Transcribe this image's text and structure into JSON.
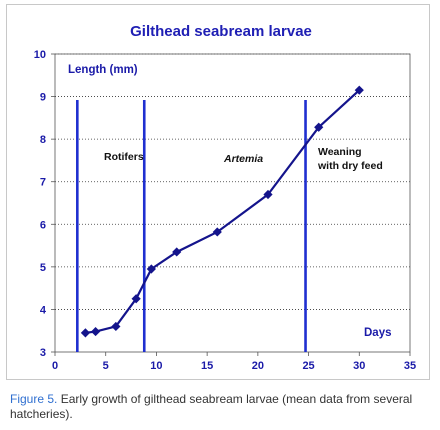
{
  "chart_data": {
    "type": "line",
    "title": "Gilthead seabream larvae",
    "ylabel": "Length (mm)",
    "xlabel": "Days",
    "xlim": [
      0,
      35
    ],
    "ylim": [
      3,
      10
    ],
    "x_ticks": [
      0,
      5,
      10,
      15,
      20,
      25,
      30,
      35
    ],
    "y_ticks": [
      3,
      4,
      5,
      6,
      7,
      8,
      9,
      10
    ],
    "grid": "horizontal dotted",
    "series": [
      {
        "x": [
          3,
          4,
          6,
          8,
          9.5,
          12,
          16,
          21,
          26,
          30
        ],
        "values": [
          3.45,
          3.48,
          3.6,
          4.25,
          4.95,
          5.35,
          5.82,
          6.7,
          8.28,
          9.15
        ],
        "color": "#14148c",
        "marker": "diamond"
      }
    ],
    "vertical_lines": [
      {
        "x": 2.2,
        "color": "#1f2fd0"
      },
      {
        "x": 8.8,
        "color": "#1f2fd0"
      },
      {
        "x": 24.7,
        "color": "#1f2fd0"
      }
    ],
    "annotations": [
      {
        "lines": [
          "Rotifers"
        ],
        "italic": false
      },
      {
        "lines": [
          "Artemia"
        ],
        "italic": true
      },
      {
        "lines": [
          "Weaning",
          "with dry feed"
        ],
        "italic": false
      }
    ]
  },
  "caption": {
    "label": "Figure 5.",
    "text": " Early growth of gilthead seabream larvae (mean data from several hatcheries)."
  },
  "colors": {
    "title": "#1f1fb4",
    "axis_text": "#1a1aa8",
    "caption_label": "#2f6fd0"
  }
}
